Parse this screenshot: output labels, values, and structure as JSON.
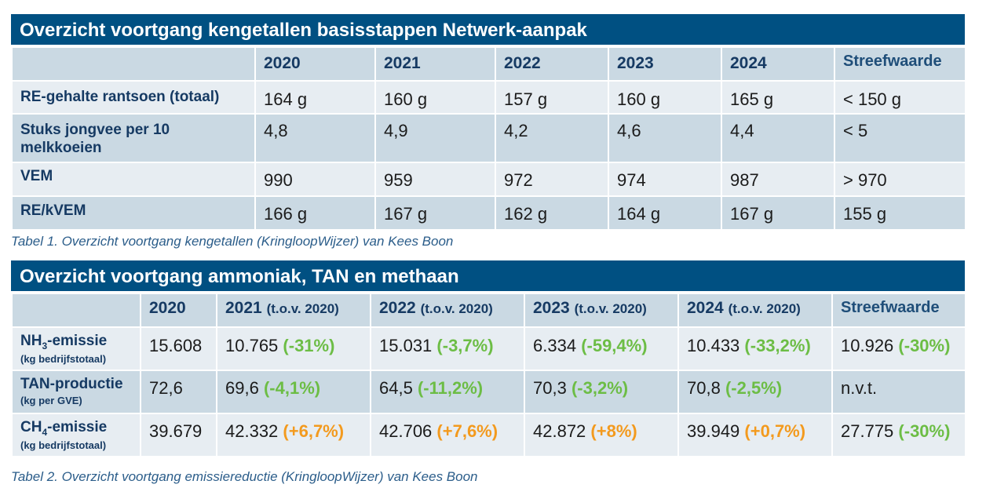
{
  "table1": {
    "title": "Overzicht voortgang kengetallen basisstappen Netwerk-aanpak",
    "headers": [
      "",
      "2020",
      "2021",
      "2022",
      "2023",
      "2024",
      "Streefwaarde"
    ],
    "rows": [
      {
        "label": "RE-gehalte rantsoen (totaal)",
        "values": [
          "164 g",
          "160 g",
          "157 g",
          "160 g",
          "165 g",
          "< 150 g"
        ]
      },
      {
        "label": "Stuks jongvee per 10 melkkoeien",
        "values": [
          "4,8",
          "4,9",
          "4,2",
          "4,6",
          "4,4",
          "< 5"
        ]
      },
      {
        "label": "VEM",
        "values": [
          "990",
          "959",
          "972",
          "974",
          "987",
          "> 970"
        ]
      },
      {
        "label": "RE/kVEM",
        "values": [
          "166 g",
          "167 g",
          "162 g",
          "164 g",
          "167 g",
          "155 g"
        ]
      }
    ],
    "caption": "Tabel 1. Overzicht voortgang kengetallen (KringloopWijzer) van Kees Boon"
  },
  "table2": {
    "title": "Overzicht voortgang ammoniak, TAN en methaan",
    "headers": [
      {
        "year": "",
        "note": ""
      },
      {
        "year": "2020",
        "note": ""
      },
      {
        "year": "2021",
        "note": "(t.o.v. 2020)"
      },
      {
        "year": "2022",
        "note": "(t.o.v. 2020)"
      },
      {
        "year": "2023",
        "note": "(t.o.v. 2020)"
      },
      {
        "year": "2024",
        "note": "(t.o.v. 2020)"
      },
      {
        "year": "Streefwaarde",
        "note": ""
      }
    ],
    "rows": [
      {
        "label_a": "NH",
        "label_sub": "3",
        "label_b": "-emissie",
        "unit": "(kg bedrijfstotaal)",
        "cells": [
          {
            "value": "15.608",
            "change": "",
            "color": ""
          },
          {
            "value": "10.765",
            "change": "(-31%)",
            "color": "#6cbd45"
          },
          {
            "value": "15.031",
            "change": "(-3,7%)",
            "color": "#6cbd45"
          },
          {
            "value": "6.334",
            "change": "(-59,4%)",
            "color": "#6cbd45"
          },
          {
            "value": "10.433",
            "change": "(-33,2%)",
            "color": "#6cbd45"
          },
          {
            "value": "10.926",
            "change": "(-30%)",
            "color": "#6cbd45"
          }
        ]
      },
      {
        "label_a": "TAN-productie",
        "label_sub": "",
        "label_b": "",
        "unit": "(kg per GVE)",
        "cells": [
          {
            "value": "72,6",
            "change": "",
            "color": ""
          },
          {
            "value": "69,6",
            "change": "(-4,1%)",
            "color": "#6cbd45"
          },
          {
            "value": "64,5",
            "change": "(-11,2%)",
            "color": "#6cbd45"
          },
          {
            "value": "70,3",
            "change": "(-3,2%)",
            "color": "#6cbd45"
          },
          {
            "value": "70,8",
            "change": "(-2,5%)",
            "color": "#6cbd45"
          },
          {
            "value": "n.v.t.",
            "change": "",
            "color": ""
          }
        ]
      },
      {
        "label_a": "CH",
        "label_sub": "4",
        "label_b": "-emissie",
        "unit": "(kg bedrijfstotaal)",
        "cells": [
          {
            "value": "39.679",
            "change": "",
            "color": ""
          },
          {
            "value": "42.332",
            "change": "(+6,7%)",
            "color": "#f39a1e"
          },
          {
            "value": "42.706",
            "change": "(+7,6%)",
            "color": "#f39a1e"
          },
          {
            "value": "42.872",
            "change": "(+8%)",
            "color": "#f39a1e"
          },
          {
            "value": "39.949",
            "change": "(+0,7%)",
            "color": "#f39a1e"
          },
          {
            "value": "27.775",
            "change": "(-30%)",
            "color": "#6cbd45"
          }
        ]
      }
    ],
    "caption": "Tabel 2. Overzicht voortgang emissiereductie (KringloopWijzer) van Kees Boon"
  },
  "colors": {
    "header_blue": "#005082",
    "row_light": "#e7edf2",
    "row_dark": "#cad9e3",
    "decrease_green": "#6cbd45",
    "increase_orange": "#f39a1e"
  }
}
